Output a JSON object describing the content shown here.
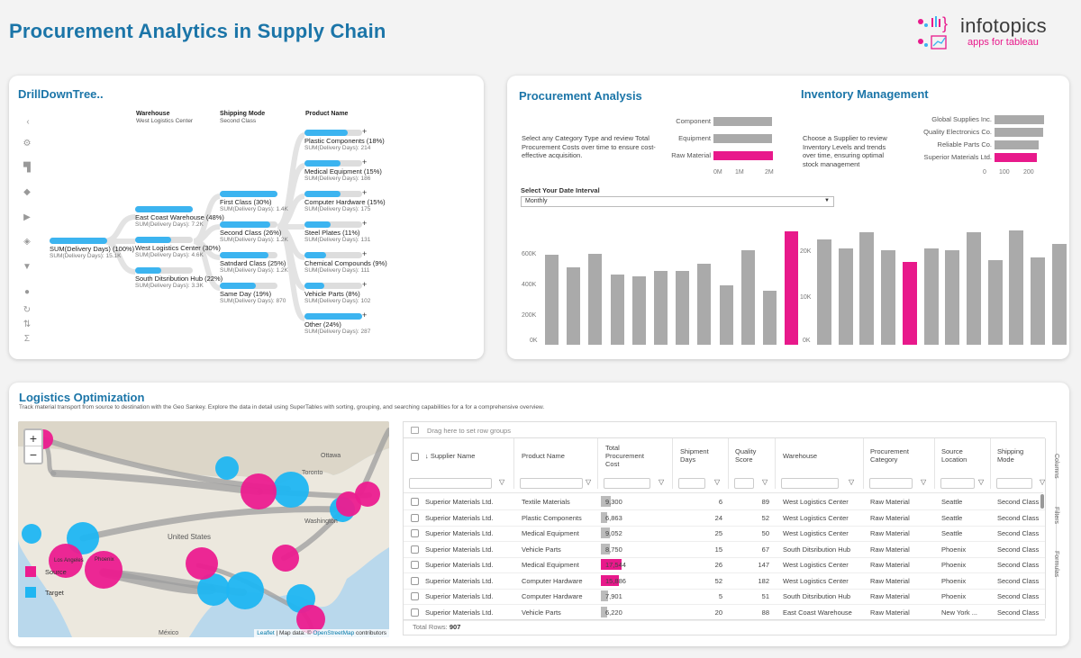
{
  "header": {
    "title": "Procurement  Analytics in Supply Chain",
    "logo_name": "infotopics",
    "logo_sub": "apps for tableau"
  },
  "drilldown": {
    "title": "DrillDownTree..",
    "col_warehouse": "Warehouse",
    "col_warehouse_sub": "West Logistics Center",
    "col_shipping": "Shipping Mode",
    "col_shipping_sub": "Second Class",
    "col_product": "Product Name",
    "root": {
      "label": "SUM(Delivery Days) (100%)",
      "sub": "SUM(Delivery Days): 15.1K",
      "pct": 100
    },
    "warehouses": [
      {
        "label": "East Coast Warehouse (48%)",
        "sub": "SUM(Delivery Days): 7.2K",
        "pct": 48
      },
      {
        "label": "West Logistics Center (30%)",
        "sub": "SUM(Delivery Days): 4.6K",
        "pct": 30
      },
      {
        "label": "South Ditsribution Hub (22%)",
        "sub": "SUM(Delivery Days): 3.3K",
        "pct": 22
      }
    ],
    "shipping": [
      {
        "label": "First Class (30%)",
        "sub": "SUM(Delivery Days): 1.4K",
        "pct": 30
      },
      {
        "label": "Second Class (26%)",
        "sub": "SUM(Delivery Days): 1.2K",
        "pct": 26
      },
      {
        "label": "Satndard Class (25%)",
        "sub": "SUM(Delivery Days): 1.2K",
        "pct": 25
      },
      {
        "label": "Same Day (19%)",
        "sub": "SUM(Delivery Days): 870",
        "pct": 19
      }
    ],
    "products": [
      {
        "label": "Plastic Components (18%)",
        "sub": "SUM(Delivery Days): 214",
        "pct": 18
      },
      {
        "label": "Medical Equipment (15%)",
        "sub": "SUM(Delivery Days): 186",
        "pct": 15
      },
      {
        "label": "Computer Hardware (15%)",
        "sub": "SUM(Delivery Days): 175",
        "pct": 15
      },
      {
        "label": "Steel Plates (11%)",
        "sub": "SUM(Delivery Days): 131",
        "pct": 11
      },
      {
        "label": "Chemical Compounds (9%)",
        "sub": "SUM(Delivery Days): 111",
        "pct": 9
      },
      {
        "label": "Vehicle Parts (8%)",
        "sub": "SUM(Delivery Days): 102",
        "pct": 8
      },
      {
        "label": "Other (24%)",
        "sub": "SUM(Delivery Days): 287",
        "pct": 24
      }
    ],
    "plus": "+",
    "tools": [
      "chevron-left-icon",
      "gear-icon",
      "paint-roller-icon",
      "tag-icon",
      "play-icon",
      "layers-icon",
      "filter-icon",
      "user-icon",
      "refresh-icon",
      "sort-icon",
      "sigma-icon"
    ]
  },
  "procurement": {
    "title": "Procurement Analysis",
    "description": "Select any Category Type and review Total Procurement Costs over time to ensure cost-effective acquisition.",
    "categories": [
      {
        "label": "Component",
        "value": 1.3,
        "highlight": false
      },
      {
        "label": "Equipment",
        "value": 1.3,
        "highlight": false
      },
      {
        "label": "Raw Material",
        "value": 1.33,
        "highlight": true
      }
    ],
    "axis": [
      "0M",
      "1M",
      "2M"
    ],
    "interval_label": "Select Your Date Interval",
    "interval_value": "Monthly",
    "y_ticks": [
      "600K",
      "400K",
      "200K",
      "0K"
    ],
    "monthly": [
      590,
      505,
      595,
      460,
      450,
      485,
      480,
      530,
      390,
      620,
      355,
      740
    ]
  },
  "inventory": {
    "title": "Inventory Management",
    "description": "Choose a Supplier to review Inventory Levels and trends over time, ensuring optimal stock management",
    "suppliers": [
      {
        "label": "Global Supplies Inc.",
        "value": 200,
        "highlight": false
      },
      {
        "label": "Quality Electronics Co.",
        "value": 198,
        "highlight": false
      },
      {
        "label": "Reliable Parts Co.",
        "value": 190,
        "highlight": false
      },
      {
        "label": "Superior Materials Ltd.",
        "value": 185,
        "highlight": true
      }
    ],
    "axis": [
      "0",
      "100",
      "200"
    ],
    "y_ticks": [
      "20K",
      "10K",
      "0K"
    ],
    "monthly": [
      23000,
      21000,
      24500,
      20500,
      18000,
      21000,
      20500,
      24500,
      18500,
      25000,
      19000,
      22000
    ],
    "highlight_index": 4
  },
  "logistics": {
    "title": "Logistics Optimization",
    "description": "Track material transport from source to destination with the Geo Sankey. Explore the data in detail using SuperTables with sorting, grouping, and searching capabilities for a for a comprehensive overview.",
    "zoom_in": "+",
    "zoom_out": "−",
    "legend_source": "Source",
    "legend_target": "Target",
    "map_labels": {
      "ottawa": "Ottawa",
      "toronto": "Toronto",
      "washington": "Washington",
      "us": "United States",
      "mexico": "México",
      "los_angeles": "Los Angeles",
      "phoenix": "Phoenix"
    },
    "attribution_leaflet": "Leaflet",
    "attribution_rest": " | Map data: © ",
    "attribution_osm": "OpenStreetMap",
    "attribution_tail": " contributors"
  },
  "table": {
    "group_hint": "Drag here to set row groups",
    "columns": [
      "↓ Supplier Name",
      "Product Name",
      "Total Procurement Cost",
      "Shipment Days",
      "Quality Score",
      "Warehouse",
      "Procurement Category",
      "Source Location",
      "Shipping Mode"
    ],
    "side_tabs": [
      "Columns",
      "Filters",
      "Formulas"
    ],
    "rows": [
      {
        "supplier": "Superior Materials Ltd.",
        "product": "Textile Materials",
        "cost": "9,300",
        "days": "6",
        "quality": "89",
        "warehouse": "West Logistics Center",
        "category": "Raw Material",
        "source": "Seattle",
        "mode": "Second Class",
        "cost_level": 0.18,
        "hot": false
      },
      {
        "supplier": "Superior Materials Ltd.",
        "product": "Plastic Components",
        "cost": "6,863",
        "days": "24",
        "quality": "52",
        "warehouse": "West Logistics Center",
        "category": "Raw Material",
        "source": "Seattle",
        "mode": "Second Class",
        "cost_level": 0.12,
        "hot": false
      },
      {
        "supplier": "Superior Materials Ltd.",
        "product": "Medical Equipment",
        "cost": "9,052",
        "days": "25",
        "quality": "50",
        "warehouse": "West Logistics Center",
        "category": "Raw Material",
        "source": "Seattle",
        "mode": "Second Class",
        "cost_level": 0.17,
        "hot": false
      },
      {
        "supplier": "Superior Materials Ltd.",
        "product": "Vehicle Parts",
        "cost": "8,750",
        "days": "15",
        "quality": "67",
        "warehouse": "South Ditsribution Hub",
        "category": "Raw Material",
        "source": "Phoenix",
        "mode": "Second Class",
        "cost_level": 0.16,
        "hot": false
      },
      {
        "supplier": "Superior Materials Ltd.",
        "product": "Medical Equipment",
        "cost": "17,544",
        "days": "26",
        "quality": "147",
        "warehouse": "West Logistics Center",
        "category": "Raw Material",
        "source": "Phoenix",
        "mode": "Second Class",
        "cost_level": 0.38,
        "hot": true
      },
      {
        "supplier": "Superior Materials Ltd.",
        "product": "Computer Hardware",
        "cost": "15,886",
        "days": "52",
        "quality": "182",
        "warehouse": "West Logistics Center",
        "category": "Raw Material",
        "source": "Phoenix",
        "mode": "Second Class",
        "cost_level": 0.34,
        "hot": true
      },
      {
        "supplier": "Superior Materials Ltd.",
        "product": "Computer Hardware",
        "cost": "7,901",
        "days": "5",
        "quality": "51",
        "warehouse": "South Ditsribution Hub",
        "category": "Raw Material",
        "source": "Phoenix",
        "mode": "Second Class",
        "cost_level": 0.14,
        "hot": false
      },
      {
        "supplier": "Superior Materials Ltd.",
        "product": "Vehicle Parts",
        "cost": "6,220",
        "days": "20",
        "quality": "88",
        "warehouse": "East Coast Warehouse",
        "category": "Raw Material",
        "source": "New York ...",
        "mode": "Second Class",
        "cost_level": 0.11,
        "hot": false
      }
    ],
    "total_rows_label": "Total Rows:",
    "total_rows_value": "907"
  },
  "colors": {
    "accent": "#1b75a8",
    "blue": "#3cb4f0",
    "pink": "#e8198b",
    "grey": "#aaaaaa"
  }
}
